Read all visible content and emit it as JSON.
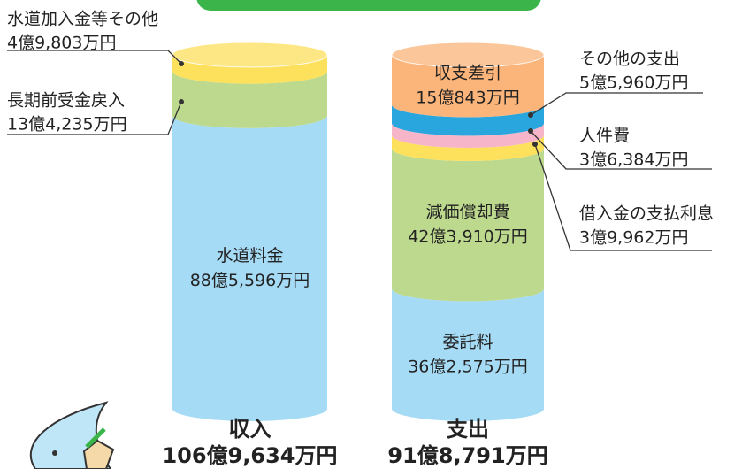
{
  "chart_data": {
    "type": "stacked-cylinder",
    "stacks": [
      {
        "name": "収入",
        "total": 1069634,
        "total_label": "106億9,634万円",
        "segments": [
          {
            "name": "水道料金",
            "color": "#a6dbf5",
            "value": 885596,
            "value_label": "88億5,596万円"
          },
          {
            "name": "長期前受金戻入",
            "color": "#bdd98e",
            "value": 134235,
            "value_label": "13億4,235万円"
          },
          {
            "name": "水道加入金等その他",
            "color": "#fde05c",
            "value": 49803,
            "value_label": "4億9,803万円"
          }
        ]
      },
      {
        "name": "支出",
        "total": 918791,
        "total_label": "91億8,791万円",
        "segments": [
          {
            "name": "委託料",
            "color": "#a6dbf5",
            "value": 362575,
            "value_label": "36億2,575万円"
          },
          {
            "name": "減価償却費",
            "color": "#bdd98e",
            "value": 423910,
            "value_label": "42億3,910万円"
          },
          {
            "name": "借入金の支払利息",
            "color": "#fde05c",
            "value": 39962,
            "value_label": "3億9,962万円"
          },
          {
            "name": "人件費",
            "color": "#f6b5c9",
            "value": 36384,
            "value_label": "3億6,384万円"
          },
          {
            "name": "その他の支出",
            "color": "#2aa6df",
            "value": 55960,
            "value_label": "5億5,960万円"
          },
          {
            "name": "収支差引",
            "color": "#fbb47a",
            "value": 150843,
            "value_label": "15億843万円"
          }
        ]
      }
    ]
  }
}
